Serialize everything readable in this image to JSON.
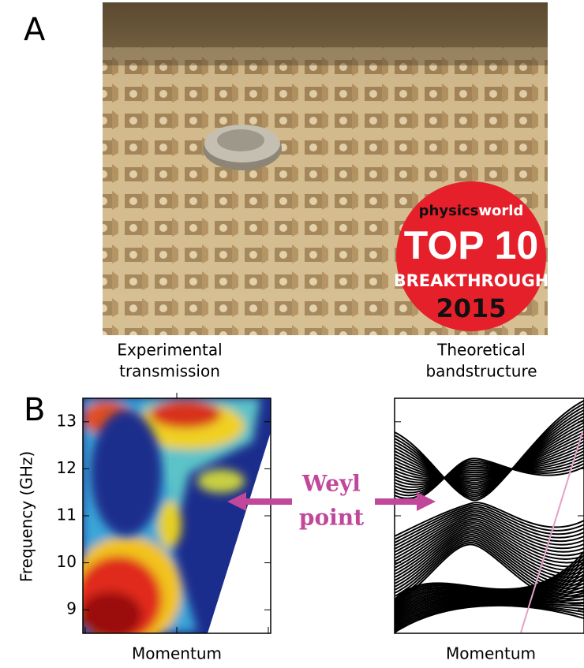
{
  "panel_a": {
    "label": "A",
    "badge": {
      "brand_left": "physics",
      "brand_right": "world",
      "line1": "TOP 10",
      "line2": "BREAKTHROUGH",
      "year": "2015"
    }
  },
  "panel_b": {
    "label": "B",
    "left": {
      "title": [
        "Experimental",
        "transmission"
      ],
      "xlabel": "Momentum"
    },
    "right": {
      "title": [
        "Theoretical",
        "bandstructure"
      ],
      "xlabel": "Momentum"
    },
    "ylabel": "Frequency (GHz)",
    "ylim": [
      8.5,
      13.5
    ],
    "yticks": [
      9,
      10,
      11,
      12,
      13
    ],
    "annotation": [
      "Weyl",
      "point"
    ]
  }
}
